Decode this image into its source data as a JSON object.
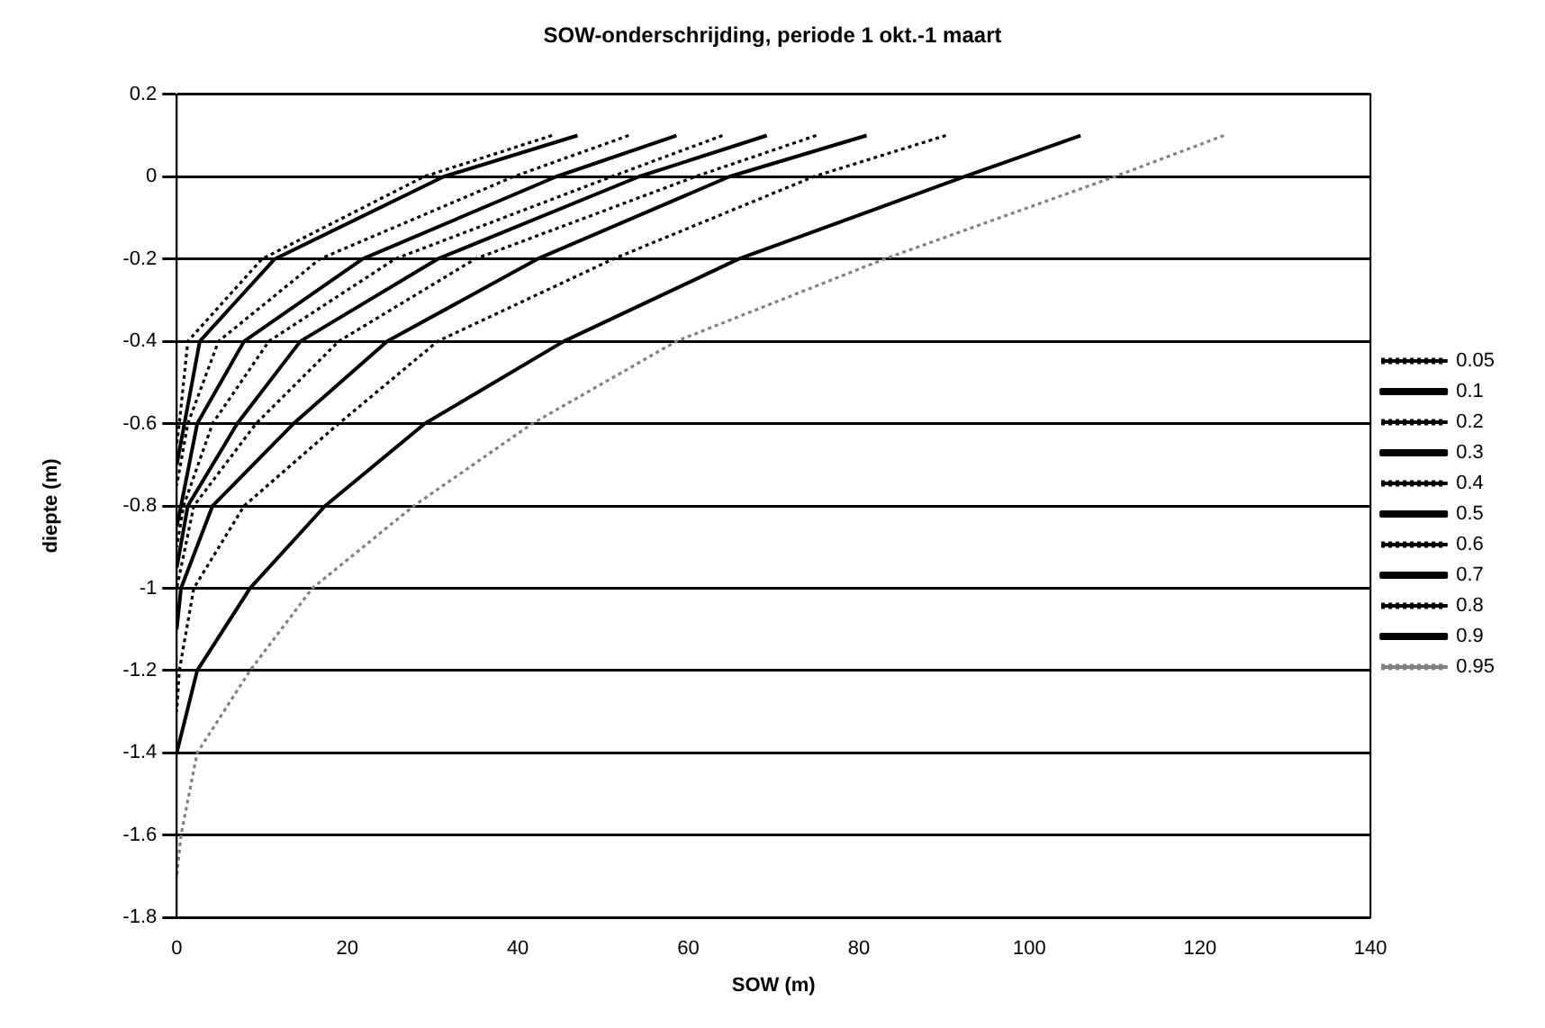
{
  "chart_data": {
    "type": "line",
    "title": "SOW-onderschrijding, periode 1 okt.-1 maart",
    "xlabel": "SOW (m)",
    "ylabel": "diepte (m)",
    "xlim": [
      0,
      140
    ],
    "xticks": [
      0,
      20,
      40,
      60,
      80,
      100,
      120,
      140
    ],
    "ylim": [
      -1.8,
      0.2
    ],
    "yticks": [
      -1.8,
      -1.6,
      -1.4,
      -1.2,
      -1,
      -0.8,
      -0.6,
      -0.4,
      -0.2,
      0,
      0.2
    ],
    "grid": "y",
    "legend": "right",
    "marker": "none",
    "series": [
      {
        "name": "0.05",
        "color": "#000000",
        "line_style": "dotted",
        "x": [
          44,
          29,
          10,
          1.3,
          0.3,
          0
        ],
        "values": [
          0.1,
          0,
          -0.2,
          -0.4,
          -0.6,
          -0.65
        ]
      },
      {
        "name": "0.1",
        "color": "#000000",
        "line_style": "solid",
        "x": [
          47,
          31.3,
          11.5,
          2.7,
          0.9,
          0
        ],
        "values": [
          0.1,
          0,
          -0.2,
          -0.4,
          -0.6,
          -0.7
        ]
      },
      {
        "name": "0.2",
        "color": "#000000",
        "line_style": "dotted",
        "x": [
          53,
          39.5,
          16.8,
          4.9,
          1.3,
          0
        ],
        "values": [
          0.1,
          0,
          -0.2,
          -0.4,
          -0.6,
          -0.75
        ]
      },
      {
        "name": "0.3",
        "color": "#000000",
        "line_style": "solid",
        "x": [
          58.6,
          44.5,
          21.8,
          7.9,
          2.4,
          0.5,
          0
        ],
        "values": [
          0.1,
          0,
          -0.2,
          -0.4,
          -0.6,
          -0.8,
          -0.85
        ]
      },
      {
        "name": "0.4",
        "color": "#000000",
        "line_style": "dotted",
        "x": [
          64,
          51,
          25.6,
          10.8,
          4.2,
          0.8,
          0
        ],
        "values": [
          0.1,
          0,
          -0.2,
          -0.4,
          -0.6,
          -0.8,
          -0.9
        ]
      },
      {
        "name": "0.5",
        "color": "#000000",
        "line_style": "solid",
        "x": [
          69.2,
          54.2,
          30.6,
          14.5,
          7.1,
          1.3,
          0
        ],
        "values": [
          0.1,
          0,
          -0.2,
          -0.4,
          -0.6,
          -0.8,
          -0.95
        ]
      },
      {
        "name": "0.6",
        "color": "#000000",
        "line_style": "dotted",
        "x": [
          75,
          60.8,
          35,
          19,
          9.3,
          2,
          0
        ],
        "values": [
          0.1,
          0,
          -0.2,
          -0.4,
          -0.6,
          -0.8,
          -1
        ]
      },
      {
        "name": "0.7",
        "color": "#000000",
        "line_style": "solid",
        "x": [
          80.9,
          64.8,
          42.3,
          24.7,
          13.7,
          4.2,
          0.5,
          0
        ],
        "values": [
          0.1,
          0,
          -0.2,
          -0.4,
          -0.6,
          -0.8,
          -1,
          -1.1
        ]
      },
      {
        "name": "0.8",
        "color": "#000000",
        "line_style": "dotted",
        "x": [
          90.2,
          74.7,
          51.2,
          30.6,
          19,
          7.9,
          2,
          0.3,
          0
        ],
        "values": [
          0.1,
          0,
          -0.2,
          -0.4,
          -0.6,
          -0.8,
          -1,
          -1.2,
          -1.3
        ]
      },
      {
        "name": "0.9",
        "color": "#000000",
        "line_style": "solid",
        "x": [
          106,
          92.4,
          65.9,
          45.4,
          29.1,
          17.4,
          8.6,
          2.4,
          0
        ],
        "values": [
          0.1,
          0,
          -0.2,
          -0.4,
          -0.6,
          -0.8,
          -1,
          -1.2,
          -1.4
        ]
      },
      {
        "name": "0.95",
        "color": "#808080",
        "line_style": "dotted",
        "x": [
          122.8,
          110,
          83,
          58.6,
          41.7,
          27.8,
          15.9,
          8.6,
          2.4,
          0.5,
          0
        ],
        "values": [
          0.1,
          0,
          -0.2,
          -0.4,
          -0.6,
          -0.8,
          -1,
          -1.2,
          -1.4,
          -1.6,
          -1.7
        ]
      }
    ]
  }
}
